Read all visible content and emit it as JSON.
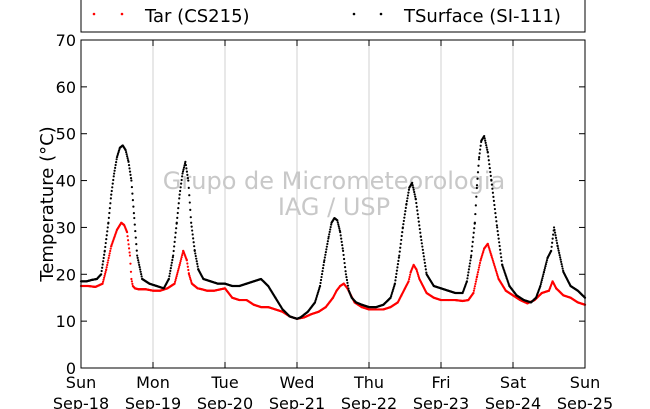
{
  "chart_data": {
    "type": "scatter",
    "title": "",
    "xlabel": "",
    "ylabel": "Temperature (°C)",
    "ylim": [
      0,
      70
    ],
    "yticks": [
      0,
      10,
      20,
      30,
      40,
      50,
      60,
      70
    ],
    "xlim": [
      0,
      7
    ],
    "x_unit": "days since Sun Sep-18 00:00",
    "xticks": [
      {
        "day": "Sun",
        "date": "Sep-18"
      },
      {
        "day": "Mon",
        "date": "Sep-19"
      },
      {
        "day": "Tue",
        "date": "Sep-20"
      },
      {
        "day": "Wed",
        "date": "Sep-21"
      },
      {
        "day": "Thu",
        "date": "Sep-22"
      },
      {
        "day": "Fri",
        "date": "Sep-23"
      },
      {
        "day": "Sat",
        "date": "Sep-24"
      },
      {
        "day": "Sun",
        "date": "Sep-25"
      }
    ],
    "grid": {
      "x": true,
      "y": false
    },
    "legend_position": "top",
    "watermark": [
      "Grupo de Micrometeorologia",
      "IAG / USP"
    ],
    "series": [
      {
        "name": "Tar (CS215)",
        "color": "#ff0000",
        "x": [
          0.0,
          0.1,
          0.2,
          0.3,
          0.35,
          0.42,
          0.5,
          0.56,
          0.6,
          0.64,
          0.68,
          0.7,
          0.72,
          0.75,
          0.8,
          0.9,
          1.0,
          1.1,
          1.2,
          1.3,
          1.37,
          1.42,
          1.47,
          1.5,
          1.54,
          1.58,
          1.62,
          1.68,
          1.75,
          1.85,
          2.0,
          2.1,
          2.2,
          2.3,
          2.4,
          2.5,
          2.6,
          2.7,
          2.8,
          2.9,
          3.0,
          3.1,
          3.2,
          3.3,
          3.4,
          3.5,
          3.55,
          3.6,
          3.65,
          3.7,
          3.75,
          3.8,
          3.85,
          3.9,
          4.0,
          4.1,
          4.2,
          4.3,
          4.4,
          4.45,
          4.5,
          4.55,
          4.58,
          4.62,
          4.66,
          4.7,
          4.8,
          4.9,
          5.0,
          5.1,
          5.2,
          5.3,
          5.38,
          5.45,
          5.5,
          5.55,
          5.6,
          5.65,
          5.7,
          5.8,
          5.9,
          6.0,
          6.1,
          6.2,
          6.3,
          6.4,
          6.5,
          6.55,
          6.6,
          6.7,
          6.8,
          6.9,
          7.0
        ],
        "y": [
          17.5,
          17.5,
          17.3,
          18.0,
          21.0,
          26.0,
          29.5,
          31.0,
          30.5,
          29.0,
          24.0,
          19.0,
          17.5,
          17.0,
          16.8,
          16.8,
          16.5,
          16.5,
          17.0,
          18.0,
          22.0,
          25.0,
          23.0,
          20.0,
          18.0,
          17.5,
          17.0,
          16.8,
          16.5,
          16.5,
          17.0,
          15.0,
          14.5,
          14.5,
          13.5,
          13.0,
          13.0,
          12.5,
          12.0,
          11.0,
          10.5,
          10.8,
          11.5,
          12.0,
          13.0,
          15.0,
          16.5,
          17.5,
          18.0,
          17.0,
          15.5,
          14.0,
          13.5,
          13.0,
          12.5,
          12.5,
          12.5,
          13.0,
          14.0,
          15.5,
          17.0,
          18.5,
          20.5,
          22.0,
          21.0,
          19.0,
          16.0,
          15.0,
          14.5,
          14.5,
          14.5,
          14.3,
          14.5,
          16.0,
          19.5,
          23.0,
          25.5,
          26.5,
          24.0,
          19.0,
          16.5,
          15.5,
          14.5,
          13.8,
          14.5,
          16.0,
          16.5,
          18.5,
          17.0,
          15.5,
          15.0,
          14.0,
          13.5
        ]
      },
      {
        "name": "TSurface (SI-111)",
        "color": "#000000",
        "x": [
          0.0,
          0.08,
          0.15,
          0.22,
          0.28,
          0.33,
          0.38,
          0.42,
          0.46,
          0.5,
          0.54,
          0.58,
          0.62,
          0.66,
          0.7,
          0.74,
          0.78,
          0.85,
          0.95,
          1.05,
          1.15,
          1.22,
          1.28,
          1.33,
          1.37,
          1.41,
          1.45,
          1.49,
          1.53,
          1.58,
          1.63,
          1.7,
          1.8,
          1.9,
          2.0,
          2.1,
          2.2,
          2.3,
          2.4,
          2.5,
          2.6,
          2.7,
          2.8,
          2.9,
          3.0,
          3.05,
          3.15,
          3.25,
          3.32,
          3.38,
          3.44,
          3.48,
          3.52,
          3.56,
          3.6,
          3.64,
          3.68,
          3.72,
          3.76,
          3.82,
          3.9,
          4.0,
          4.1,
          4.2,
          4.3,
          4.36,
          4.42,
          4.47,
          4.52,
          4.56,
          4.6,
          4.65,
          4.72,
          4.8,
          4.9,
          5.0,
          5.1,
          5.2,
          5.3,
          5.36,
          5.42,
          5.47,
          5.5,
          5.53,
          5.56,
          5.6,
          5.65,
          5.7,
          5.78,
          5.85,
          5.95,
          6.05,
          6.15,
          6.25,
          6.32,
          6.38,
          6.43,
          6.48,
          6.53,
          6.57,
          6.62,
          6.7,
          6.8,
          6.9,
          7.0
        ],
        "y": [
          18.5,
          18.5,
          18.8,
          19.0,
          20.0,
          25.0,
          31.0,
          37.0,
          41.5,
          45.0,
          47.0,
          47.5,
          46.5,
          44.0,
          40.0,
          32.0,
          24.0,
          19.0,
          18.0,
          17.5,
          17.0,
          19.0,
          24.0,
          31.0,
          37.0,
          41.5,
          44.0,
          40.0,
          31.0,
          25.0,
          21.0,
          19.0,
          18.5,
          18.0,
          18.0,
          17.5,
          17.5,
          18.0,
          18.5,
          19.0,
          17.5,
          15.0,
          12.5,
          11.0,
          10.5,
          10.8,
          12.0,
          14.0,
          17.5,
          23.0,
          28.0,
          31.0,
          32.0,
          31.5,
          29.0,
          25.0,
          20.0,
          16.5,
          15.0,
          14.0,
          13.5,
          13.0,
          13.0,
          13.5,
          15.0,
          18.0,
          24.0,
          30.0,
          35.0,
          38.5,
          39.5,
          36.0,
          28.0,
          20.0,
          17.5,
          17.0,
          16.5,
          16.0,
          16.0,
          18.5,
          24.0,
          31.0,
          39.0,
          45.0,
          48.5,
          49.5,
          46.0,
          40.0,
          30.0,
          22.0,
          17.5,
          15.5,
          14.5,
          14.0,
          15.0,
          17.5,
          20.5,
          23.5,
          25.0,
          30.0,
          26.0,
          20.5,
          17.5,
          16.5,
          15.0
        ]
      }
    ]
  }
}
